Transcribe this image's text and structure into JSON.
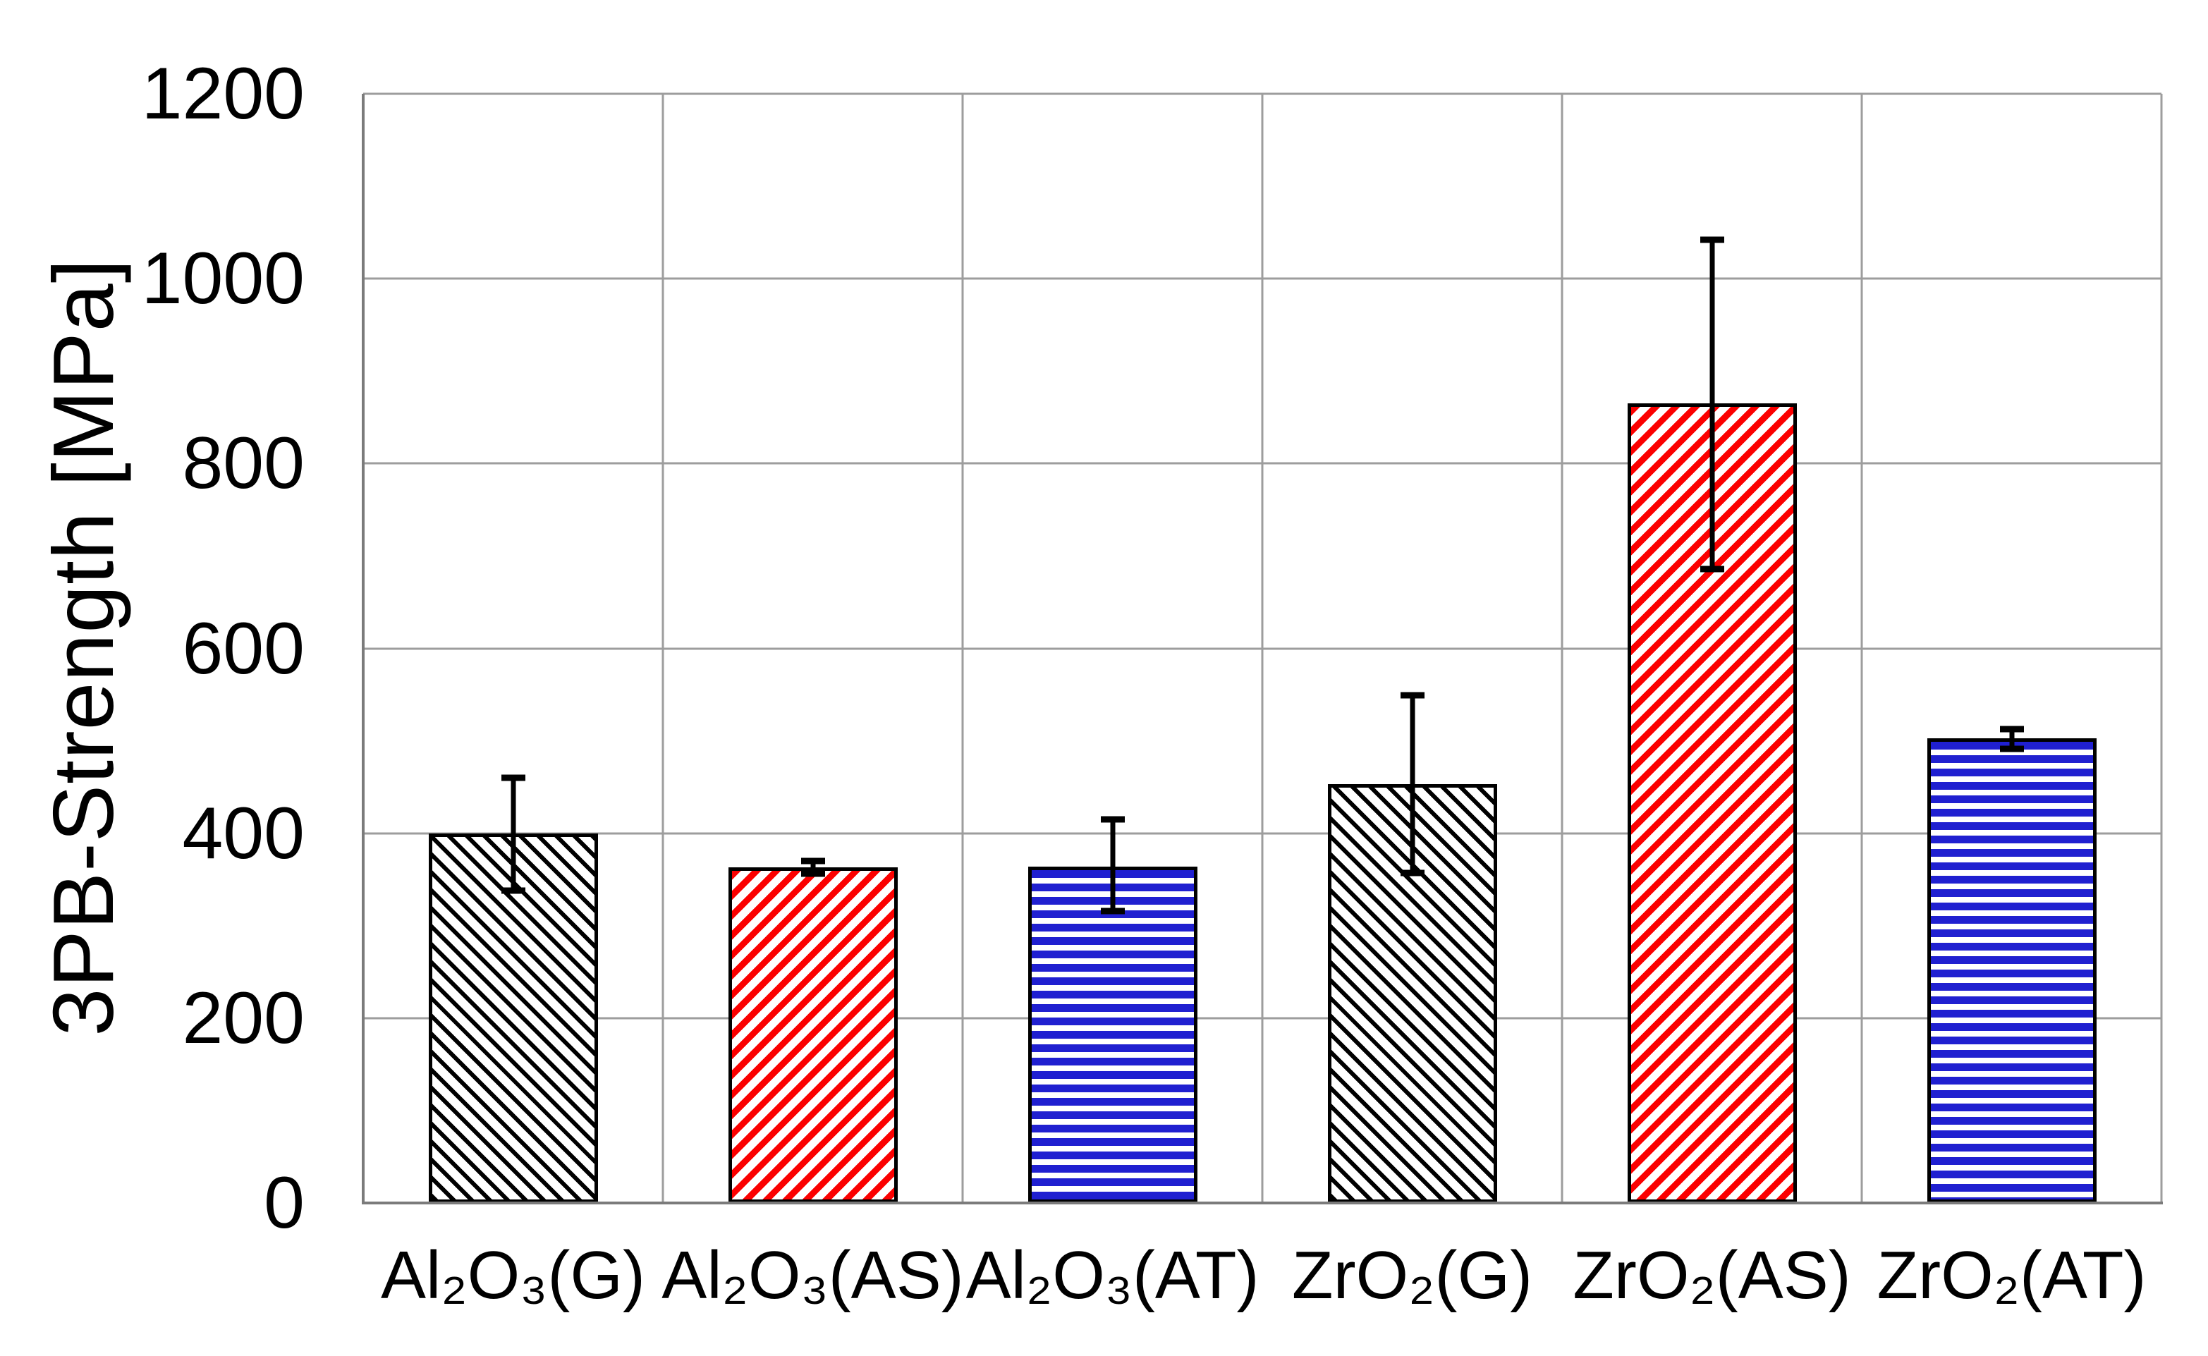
{
  "chart_data": {
    "type": "bar",
    "title": "",
    "xlabel": "",
    "ylabel": "3PB-Strength [MPa]",
    "categories": [
      "Al₂O₃(G)",
      "Al₂O₃(AS)",
      "Al₂O₃(AT)",
      "ZrO₂(G)",
      "ZrO₂(AS)",
      "ZrO₂(AT)"
    ],
    "values": [
      400,
      363,
      364,
      453,
      865,
      503
    ],
    "error_plus": [
      60,
      7,
      51,
      96,
      177,
      10
    ],
    "error_minus": [
      62,
      7,
      48,
      96,
      179,
      12
    ],
    "ylim": [
      0,
      1200
    ],
    "yticks": [
      0,
      200,
      400,
      600,
      800,
      1000,
      1200
    ],
    "grid": true,
    "legend_position": "none",
    "bar_styles": [
      {
        "pattern": "diagonal-down",
        "color": "#000000"
      },
      {
        "pattern": "diagonal-up",
        "color": "#fb0000"
      },
      {
        "pattern": "horizontal",
        "color": "#2020d0"
      },
      {
        "pattern": "diagonal-down",
        "color": "#000000"
      },
      {
        "pattern": "diagonal-up",
        "color": "#fb0000"
      },
      {
        "pattern": "horizontal",
        "color": "#2020d0"
      }
    ]
  },
  "colors": {
    "background": "#ffffff",
    "gridline": "#9d9d9d",
    "axis": "#7b7b7b",
    "bar_border": "#000000",
    "error_bar": "#000000",
    "text": "#000000"
  }
}
